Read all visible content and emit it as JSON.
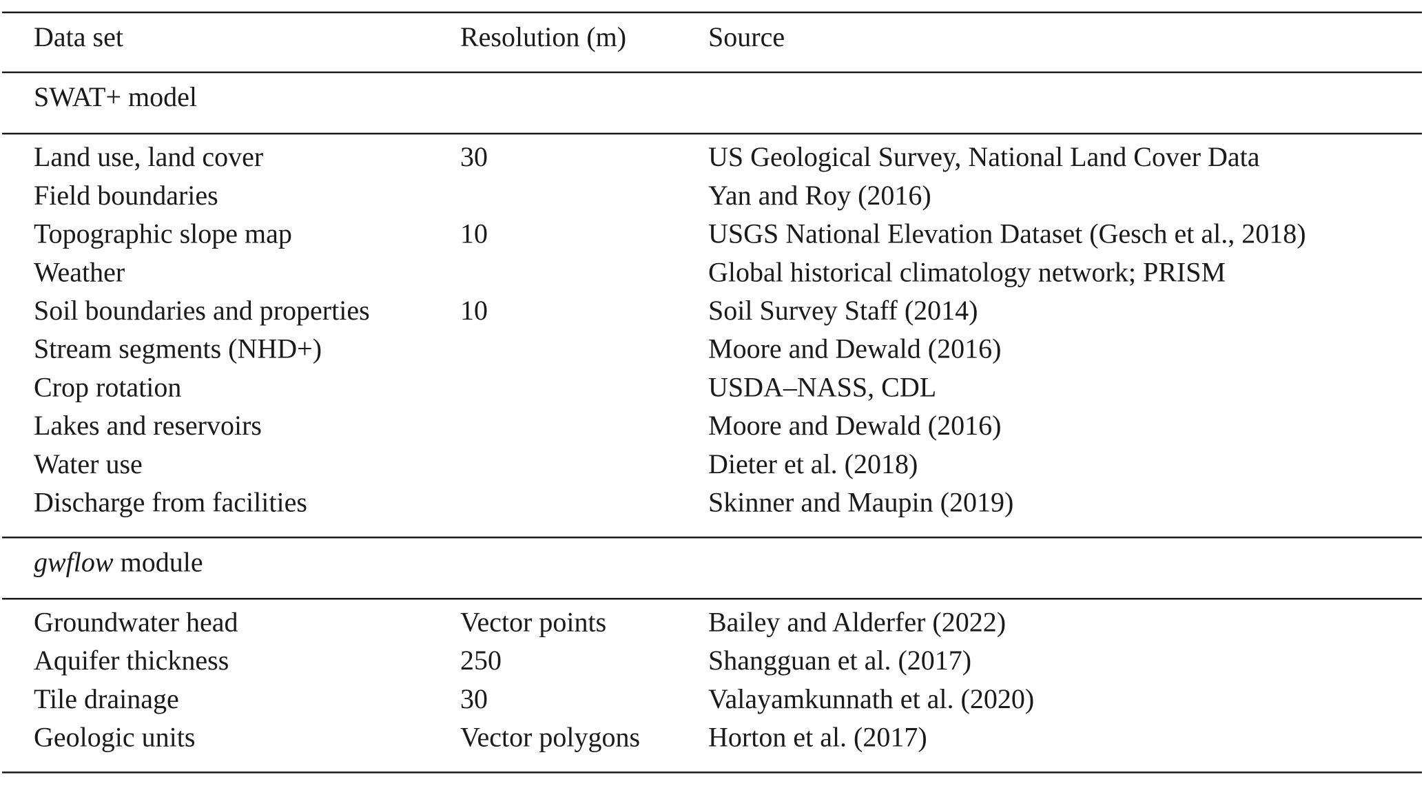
{
  "table": {
    "header": [
      "Data set",
      "Resolution (m)",
      "Source"
    ],
    "sections": [
      {
        "title": [
          {
            "text": "SWAT+ model"
          }
        ],
        "rows": [
          [
            "Land use, land cover",
            "30",
            "US Geological Survey, National Land Cover Data"
          ],
          [
            "Field boundaries",
            null,
            "Yan and Roy (2016)"
          ],
          [
            "Topographic slope map",
            "10",
            "USGS National Elevation Dataset (Gesch et al., 2018)"
          ],
          [
            "Weather",
            null,
            "Global historical climatology network; PRISM"
          ],
          [
            "Soil boundaries and properties",
            "10",
            "Soil Survey Staff (2014)"
          ],
          [
            "Stream segments (NHD+)",
            null,
            "Moore and Dewald (2016)"
          ],
          [
            "Crop rotation",
            null,
            "USDA–NASS, CDL"
          ],
          [
            "Lakes and reservoirs",
            null,
            "Moore and Dewald (2016)"
          ],
          [
            "Water use",
            null,
            "Dieter et al. (2018)"
          ],
          [
            "Discharge from facilities",
            null,
            "Skinner and Maupin (2019)"
          ]
        ]
      },
      {
        "title": [
          {
            "text": "gwflow",
            "italic": true
          },
          {
            "text": " module"
          }
        ],
        "rows": [
          [
            "Groundwater head",
            "Vector points",
            "Bailey and Alderfer (2022)"
          ],
          [
            "Aquifer thickness",
            "250",
            "Shangguan et al. (2017)"
          ],
          [
            "Tile drainage",
            "30",
            "Valayamkunnath et al. (2020)"
          ],
          [
            "Geologic units",
            "Vector polygons",
            "Horton et al. (2017)"
          ]
        ]
      }
    ]
  }
}
